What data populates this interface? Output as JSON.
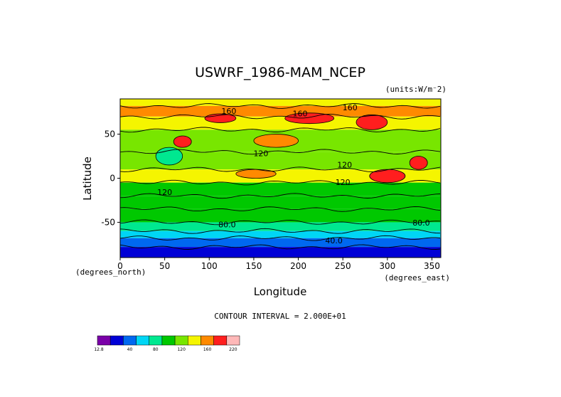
{
  "chart_data": {
    "type": "heatmap",
    "title": "USWRF_1986-MAM_NCEP",
    "units": "(units:W/m**2)",
    "units_display": "(units:W/m⁻2)",
    "xlabel": "Longitude",
    "ylabel": "Latitude",
    "x_unit_label": "(degrees_east)",
    "y_unit_label": "(degrees_north)",
    "xlim": [
      0,
      360
    ],
    "ylim": [
      -90,
      90
    ],
    "x_ticks": [
      0,
      50,
      100,
      150,
      200,
      250,
      300,
      350
    ],
    "y_ticks": [
      50,
      0,
      -50
    ],
    "contour_interval_text": "CONTOUR INTERVAL = 2.000E+01",
    "contour_labels": [
      {
        "text": "160",
        "lon": 122,
        "lat": 74
      },
      {
        "text": "160",
        "lon": 202,
        "lat": 71
      },
      {
        "text": "160",
        "lon": 258,
        "lat": 78
      },
      {
        "text": "120",
        "lon": 158,
        "lat": 26
      },
      {
        "text": "120",
        "lon": 252,
        "lat": 13
      },
      {
        "text": "120",
        "lon": 250,
        "lat": -7
      },
      {
        "text": "120",
        "lon": 50,
        "lat": -18
      },
      {
        "text": "80.0",
        "lon": 120,
        "lat": -55
      },
      {
        "text": "80.0",
        "lon": 338,
        "lat": -53
      },
      {
        "text": "40.0",
        "lon": 240,
        "lat": -73
      }
    ],
    "colorbar": {
      "labels": [
        "12.8",
        "40",
        "80",
        "120",
        "160",
        "220"
      ],
      "colors": [
        "#7a00a8",
        "#0000d6",
        "#0068f0",
        "#00d6f5",
        "#00e890",
        "#00c800",
        "#78e600",
        "#f5f500",
        "#ff8a00",
        "#ff1e1e",
        "#ffb8b8"
      ]
    },
    "field_bands": [
      {
        "lat_top": 90,
        "lat_bottom": 82,
        "value": 150
      },
      {
        "lat_top": 82,
        "lat_bottom": 70,
        "value": 165
      },
      {
        "lat_top": 70,
        "lat_bottom": 55,
        "value": 140
      },
      {
        "lat_top": 55,
        "lat_bottom": 30,
        "value": 125
      },
      {
        "lat_top": 30,
        "lat_bottom": 10,
        "value": 122
      },
      {
        "lat_top": 10,
        "lat_bottom": -5,
        "value": 145
      },
      {
        "lat_top": -5,
        "lat_bottom": -20,
        "value": 118
      },
      {
        "lat_top": -20,
        "lat_bottom": -35,
        "value": 108
      },
      {
        "lat_top": -35,
        "lat_bottom": -50,
        "value": 100
      },
      {
        "lat_top": -50,
        "lat_bottom": -60,
        "value": 85
      },
      {
        "lat_top": -60,
        "lat_bottom": -68,
        "value": 70
      },
      {
        "lat_top": -68,
        "lat_bottom": -78,
        "value": 55
      },
      {
        "lat_top": -78,
        "lat_bottom": -90,
        "value": 30
      }
    ],
    "field_patches": [
      {
        "lon": [
          95,
          130
        ],
        "lat": [
          63,
          73
        ],
        "value": 185
      },
      {
        "lon": [
          185,
          240
        ],
        "lat": [
          62,
          74
        ],
        "value": 180
      },
      {
        "lon": [
          265,
          300
        ],
        "lat": [
          55,
          72
        ],
        "value": 195
      },
      {
        "lon": [
          60,
          80
        ],
        "lat": [
          35,
          48
        ],
        "value": 190
      },
      {
        "lon": [
          325,
          345
        ],
        "lat": [
          10,
          25
        ],
        "value": 180
      },
      {
        "lon": [
          280,
          320
        ],
        "lat": [
          -5,
          10
        ],
        "value": 185
      },
      {
        "lon": [
          40,
          70
        ],
        "lat": [
          15,
          35
        ],
        "value": 95
      },
      {
        "lon": [
          150,
          200
        ],
        "lat": [
          35,
          50
        ],
        "value": 165
      },
      {
        "lon": [
          130,
          175
        ],
        "lat": [
          0,
          10
        ],
        "value": 160
      }
    ]
  }
}
